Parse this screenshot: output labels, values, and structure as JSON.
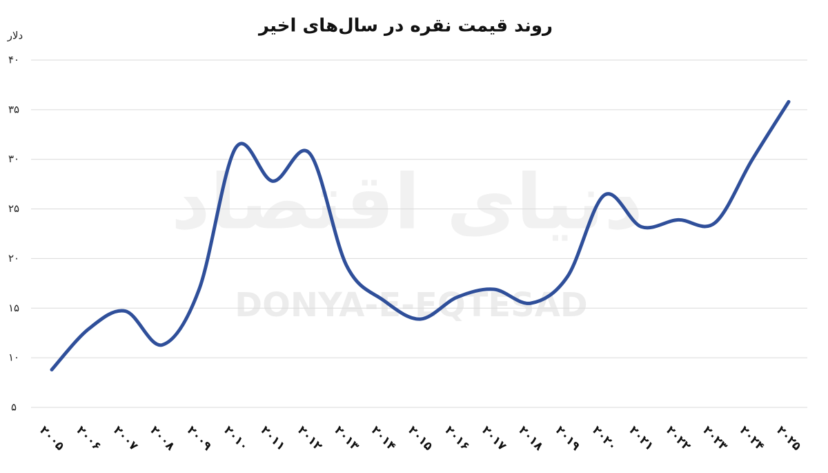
{
  "chart_data": {
    "type": "line",
    "title": "روند قیمت نقره در سال‌های اخیر",
    "y_label": "دلار",
    "watermark": "DONYA-E-EQTESAD",
    "watermark_logo": "دنیای اقتصاد",
    "categories": [
      "۲۰۰۵",
      "۲۰۰۶",
      "۲۰۰۷",
      "۲۰۰۸",
      "۲۰۰۹",
      "۲۰۱۰",
      "۲۰۱۱",
      "۲۰۱۲",
      "۲۰۱۳",
      "۲۰۱۴",
      "۲۰۱۵",
      "۲۰۱۶",
      "۲۰۱۷",
      "۲۰۱۸",
      "۲۰۱۹",
      "۲۰۲۰",
      "۲۰۲۱",
      "۲۰۲۲",
      "۲۰۲۳",
      "۲۰۲۴",
      "۲۰۲۵"
    ],
    "series": [
      {
        "color": "#2f4f9a",
        "values": [
          8.8,
          12.9,
          14.7,
          11.3,
          16.9,
          31.2,
          27.8,
          30.6,
          19.3,
          15.8,
          13.9,
          16.1,
          16.9,
          15.5,
          18.2,
          26.4,
          23.2,
          23.9,
          23.6,
          29.9,
          35.8
        ]
      }
    ],
    "ylim": [
      5,
      40
    ],
    "yticks": [
      {
        "value": 5,
        "label": "۵"
      },
      {
        "value": 10,
        "label": "۱۰"
      },
      {
        "value": 15,
        "label": "۱۵"
      },
      {
        "value": 20,
        "label": "۲۰"
      },
      {
        "value": 25,
        "label": "۲۵"
      },
      {
        "value": 30,
        "label": "۳۰"
      },
      {
        "value": 35,
        "label": "۳۵"
      },
      {
        "value": 40,
        "label": "۴۰"
      }
    ],
    "grid": true
  }
}
